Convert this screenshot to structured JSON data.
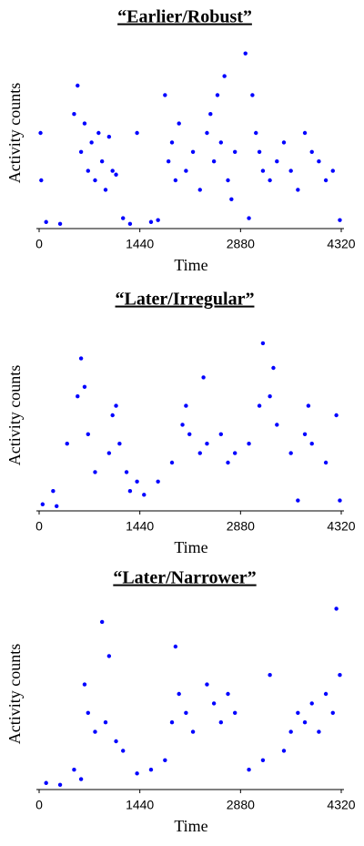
{
  "chart_data": [
    {
      "type": "scatter",
      "title": "“Earlier/Robust”",
      "xlabel": "Time",
      "ylabel": "Activity counts",
      "color": "#0000ff",
      "xlim": [
        0,
        4320
      ],
      "xticks": [
        0,
        1440,
        2880,
        4320
      ],
      "ylim": [
        0,
        100
      ],
      "x": [
        100,
        300,
        500,
        550,
        600,
        650,
        700,
        750,
        800,
        850,
        900,
        950,
        1000,
        1050,
        1100,
        1200,
        1300,
        1400,
        1600,
        1700,
        1800,
        1850,
        1900,
        1950,
        2000,
        2100,
        2200,
        2300,
        2400,
        2450,
        2500,
        2550,
        2600,
        2650,
        2700,
        2750,
        2800,
        2950,
        3000,
        3050,
        3100,
        3150,
        3200,
        3300,
        3400,
        3500,
        3600,
        3700,
        3800,
        3900,
        4000,
        4100,
        4200,
        4300,
        20,
        30
      ],
      "values": [
        3,
        2,
        60,
        75,
        40,
        55,
        30,
        45,
        25,
        50,
        35,
        20,
        48,
        30,
        28,
        5,
        2,
        50,
        3,
        4,
        70,
        35,
        45,
        25,
        55,
        30,
        40,
        20,
        50,
        60,
        35,
        70,
        45,
        80,
        25,
        15,
        40,
        92,
        5,
        70,
        50,
        40,
        30,
        25,
        35,
        45,
        30,
        20,
        50,
        40,
        35,
        25,
        30,
        4,
        50,
        25
      ]
    },
    {
      "type": "scatter",
      "title": "“Later/Irregular”",
      "xlabel": "Time",
      "ylabel": "Activity counts",
      "color": "#0000ff",
      "xlim": [
        0,
        4320
      ],
      "xticks": [
        0,
        1440,
        2880,
        4320
      ],
      "ylim": [
        0,
        100
      ],
      "x": [
        50,
        200,
        400,
        550,
        600,
        650,
        700,
        800,
        1000,
        1050,
        1100,
        1150,
        1300,
        1500,
        1700,
        1900,
        2050,
        2100,
        2150,
        2300,
        2350,
        2400,
        2600,
        2800,
        3000,
        3150,
        3200,
        3300,
        3350,
        3400,
        3600,
        3800,
        3850,
        3900,
        4100,
        4250,
        4300,
        250,
        1400,
        2700,
        1250,
        3700
      ],
      "values": [
        3,
        10,
        35,
        60,
        80,
        65,
        40,
        20,
        30,
        50,
        55,
        35,
        10,
        8,
        15,
        25,
        45,
        55,
        40,
        30,
        70,
        35,
        40,
        30,
        35,
        55,
        88,
        60,
        75,
        45,
        30,
        40,
        55,
        35,
        25,
        50,
        5,
        2,
        15,
        25,
        20,
        5
      ]
    },
    {
      "type": "scatter",
      "title": "“Later/Narrower”",
      "xlabel": "Time",
      "ylabel": "Activity counts",
      "color": "#0000ff",
      "xlim": [
        0,
        4320
      ],
      "xticks": [
        0,
        1440,
        2880,
        4320
      ],
      "ylim": [
        0,
        100
      ],
      "x": [
        100,
        300,
        500,
        600,
        650,
        700,
        800,
        900,
        950,
        1000,
        1100,
        1200,
        1400,
        1600,
        1800,
        1900,
        1950,
        2000,
        2100,
        2200,
        2400,
        2500,
        2600,
        2700,
        2800,
        3000,
        3200,
        3300,
        3500,
        3600,
        3700,
        3800,
        3900,
        4000,
        4100,
        4200,
        4250,
        4300
      ],
      "values": [
        3,
        2,
        10,
        5,
        55,
        40,
        30,
        88,
        35,
        70,
        25,
        20,
        8,
        10,
        15,
        35,
        75,
        50,
        40,
        30,
        55,
        45,
        35,
        50,
        40,
        10,
        15,
        60,
        20,
        30,
        40,
        35,
        45,
        30,
        50,
        40,
        95,
        60
      ]
    }
  ]
}
